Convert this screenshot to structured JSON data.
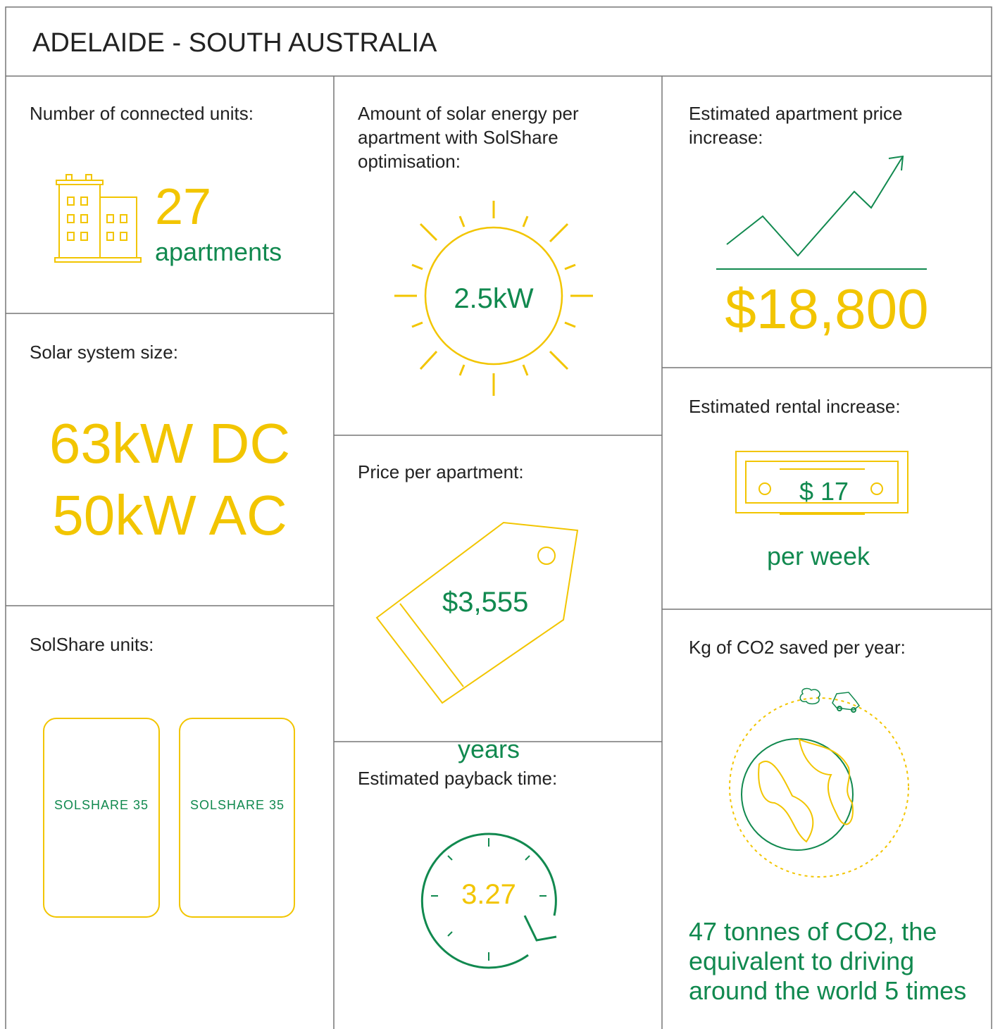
{
  "header": {
    "title": "ADELAIDE - SOUTH AUSTRALIA"
  },
  "connected_units": {
    "label": "Number of connected units:",
    "value": "27",
    "unit": "apartments"
  },
  "solar_system": {
    "label": "Solar system size:",
    "dc": "63kW DC",
    "ac": "50kW AC"
  },
  "solshare_units": {
    "label": "SolShare units:",
    "units": [
      "SOLSHARE 35",
      "SOLSHARE 35"
    ]
  },
  "solar_energy": {
    "label": "Amount of solar energy per apartment with SolShare optimisation:",
    "value": "2.5kW"
  },
  "price": {
    "label": "Price per apartment:",
    "value": "$3,555"
  },
  "payback": {
    "label": "Estimated payback time:",
    "value": "3.27",
    "unit": "years"
  },
  "apartment_price": {
    "label": "Estimated apartment price increase:",
    "value": "$18,800"
  },
  "rental": {
    "label": "Estimated rental increase:",
    "value": "$ 17",
    "unit": "per week"
  },
  "co2": {
    "label": "Kg of CO2 saved per year:",
    "text": "47 tonnes of CO2, the equivalent to driving around the world 5 times"
  }
}
